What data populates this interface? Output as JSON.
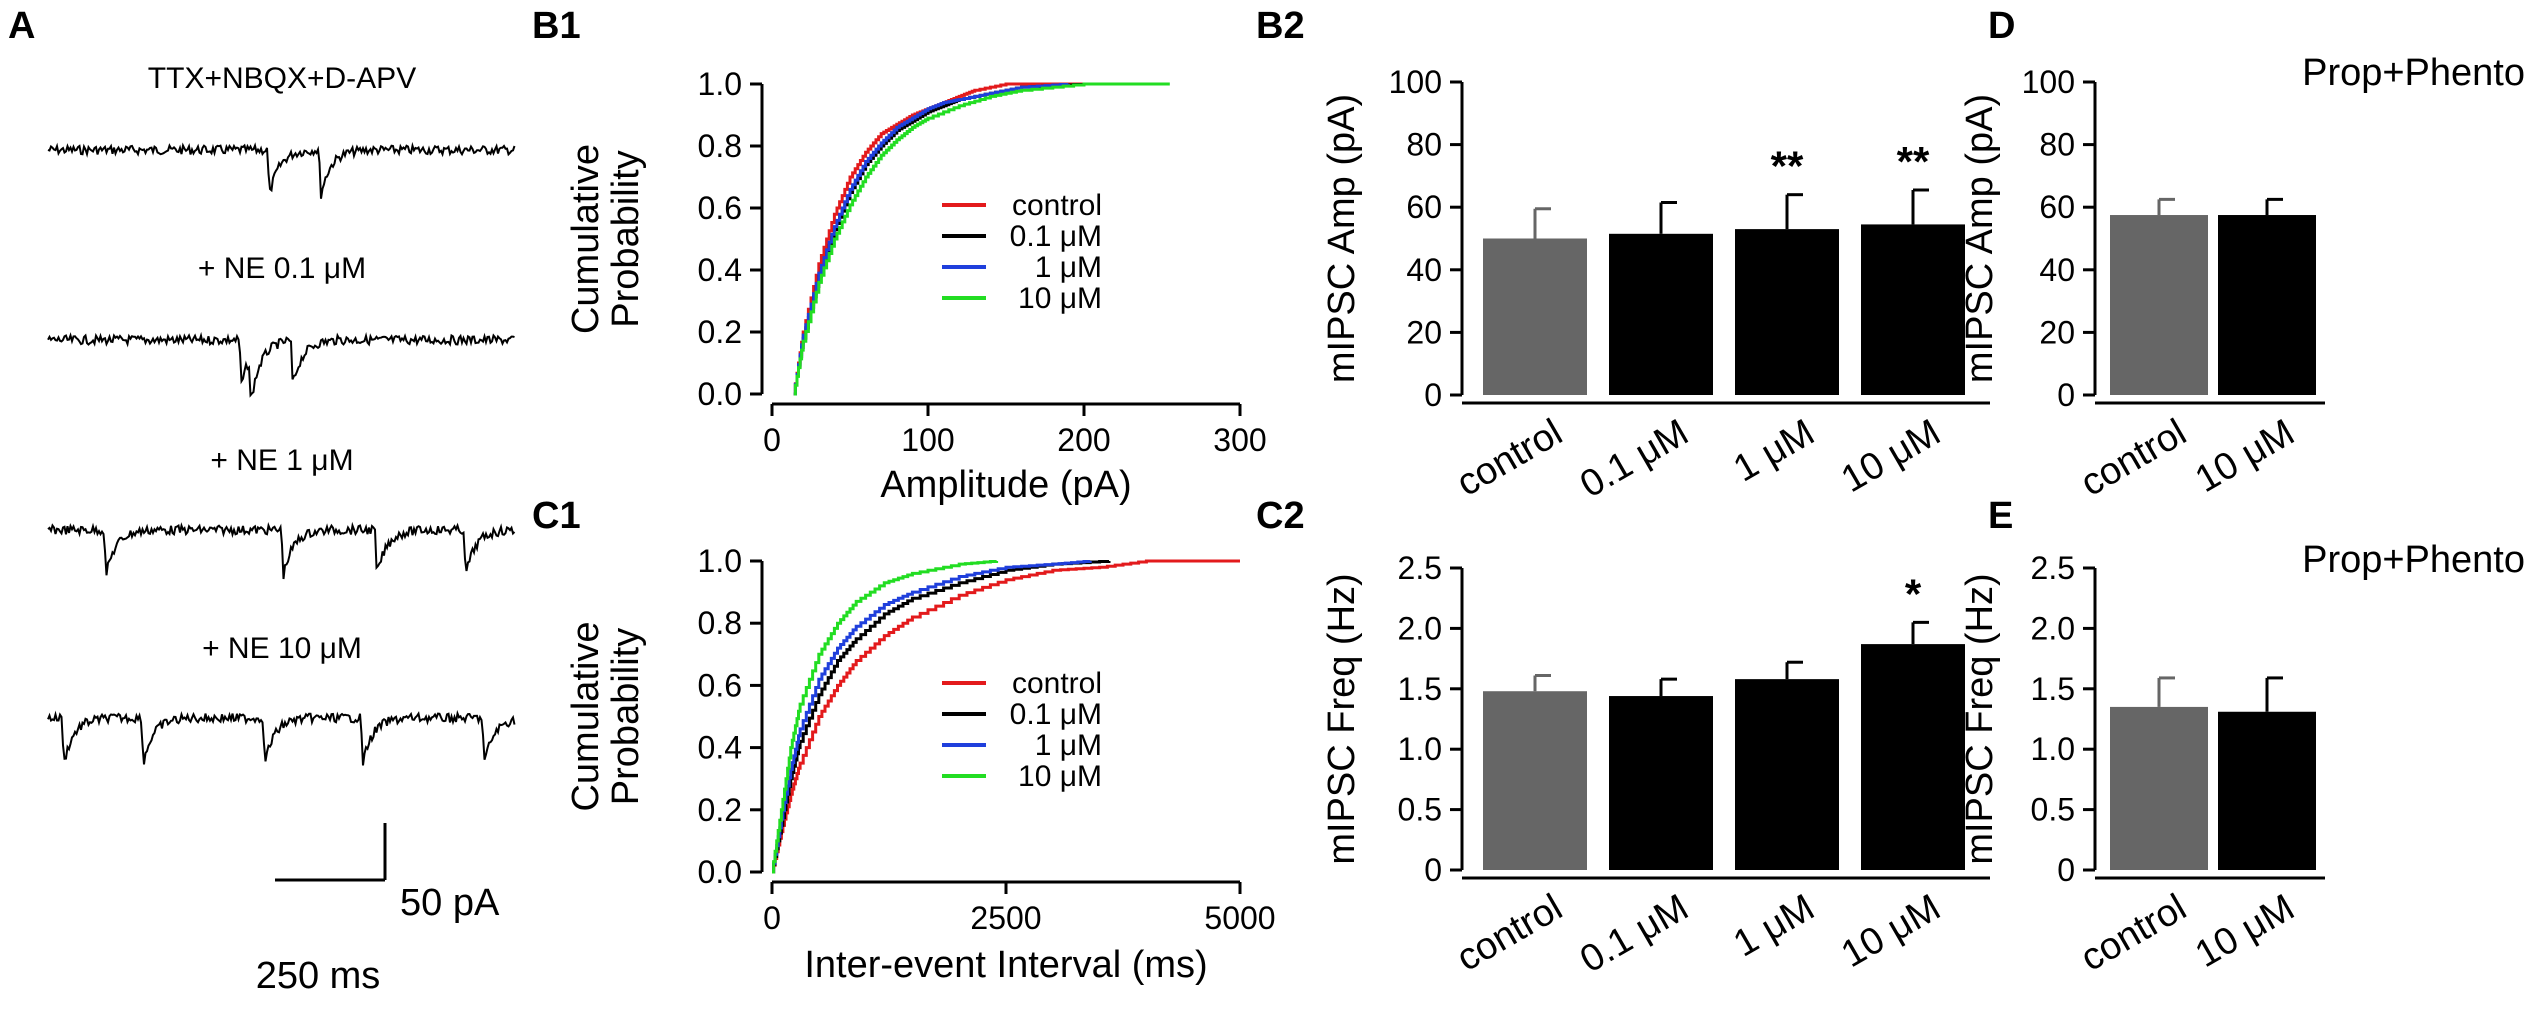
{
  "figure": {
    "colors": {
      "control": "#e31a1c",
      "c01": "#000000",
      "c1": "#1f3fdc",
      "c10": "#22dd22",
      "bar_control": "#666666",
      "bar_drug": "#000000"
    },
    "panelA": {
      "label": "A",
      "traces": [
        {
          "label": "TTX+NBQX+D-APV",
          "spike_positions": [
            0.47,
            0.58
          ]
        },
        {
          "label": "+ NE 0.1 μM",
          "spike_positions": [
            0.41,
            0.43,
            0.52
          ]
        },
        {
          "label": "+ NE 1 μM",
          "spike_positions": [
            0.12,
            0.5,
            0.7,
            0.89
          ]
        },
        {
          "label": "+ NE 10 μM",
          "spike_positions": [
            0.03,
            0.2,
            0.46,
            0.67,
            0.93
          ]
        }
      ],
      "scale_y": "50 pA",
      "scale_x": "250 ms"
    }
  },
  "chart_data": [
    {
      "id": "B1",
      "panel_label": "B1",
      "type": "line",
      "xlabel": "Amplitude (pA)",
      "ylabel_line1": "Cumulative",
      "ylabel_line2": "Probability",
      "xlim": [
        0,
        300
      ],
      "ylim": [
        0,
        1.0
      ],
      "xticks": [
        0,
        100,
        200,
        300
      ],
      "xtick_labels": [
        "0",
        "100",
        "200",
        "300"
      ],
      "yticks": [
        0,
        0.2,
        0.4,
        0.6,
        0.8,
        1.0
      ],
      "ytick_labels": [
        "0.0",
        "0.2",
        "0.4",
        "0.6",
        "0.8",
        "1.0"
      ],
      "legend_position": "center-right",
      "series": [
        {
          "name": "control",
          "key": "control",
          "x": [
            14,
            20,
            30,
            40,
            50,
            60,
            70,
            80,
            90,
            100,
            110,
            120,
            130,
            150,
            200
          ],
          "y": [
            0,
            0.2,
            0.42,
            0.58,
            0.7,
            0.78,
            0.84,
            0.87,
            0.9,
            0.92,
            0.94,
            0.96,
            0.98,
            1.0,
            1.0
          ]
        },
        {
          "name": "0.1 μM",
          "key": "c01",
          "x": [
            14,
            20,
            30,
            40,
            50,
            60,
            70,
            80,
            90,
            100,
            110,
            120,
            140,
            160,
            200
          ],
          "y": [
            0,
            0.18,
            0.38,
            0.53,
            0.65,
            0.74,
            0.8,
            0.85,
            0.88,
            0.91,
            0.93,
            0.95,
            0.97,
            0.99,
            1.0
          ]
        },
        {
          "name": "1 μM",
          "key": "c1",
          "x": [
            14,
            20,
            30,
            40,
            50,
            60,
            70,
            80,
            90,
            100,
            110,
            120,
            140,
            160,
            190
          ],
          "y": [
            0,
            0.19,
            0.39,
            0.54,
            0.66,
            0.75,
            0.81,
            0.86,
            0.89,
            0.92,
            0.94,
            0.95,
            0.97,
            0.99,
            1.0
          ]
        },
        {
          "name": "10 μM",
          "key": "c10",
          "x": [
            14,
            20,
            30,
            40,
            50,
            60,
            70,
            80,
            90,
            100,
            120,
            140,
            160,
            200,
            255
          ],
          "y": [
            0,
            0.17,
            0.36,
            0.5,
            0.61,
            0.7,
            0.77,
            0.82,
            0.86,
            0.89,
            0.93,
            0.96,
            0.98,
            1.0,
            1.0
          ]
        }
      ]
    },
    {
      "id": "C1",
      "panel_label": "C1",
      "type": "line",
      "xlabel": "Inter-event Interval (ms)",
      "ylabel_line1": "Cumulative",
      "ylabel_line2": "Probability",
      "xlim": [
        0,
        5000
      ],
      "ylim": [
        0,
        1.0
      ],
      "xticks": [
        0,
        2500,
        5000
      ],
      "xtick_labels": [
        "0",
        "2500",
        "5000"
      ],
      "yticks": [
        0,
        0.2,
        0.4,
        0.6,
        0.8,
        1.0
      ],
      "ytick_labels": [
        "0.0",
        "0.2",
        "0.4",
        "0.6",
        "0.8",
        "1.0"
      ],
      "legend_position": "center-right",
      "series": [
        {
          "name": "control",
          "key": "control",
          "x": [
            0,
            100,
            200,
            300,
            500,
            700,
            900,
            1200,
            1500,
            2000,
            2500,
            3000,
            3500,
            4000,
            5000
          ],
          "y": [
            0,
            0.13,
            0.25,
            0.35,
            0.5,
            0.6,
            0.68,
            0.76,
            0.82,
            0.89,
            0.94,
            0.97,
            0.98,
            1.0,
            1.0
          ]
        },
        {
          "name": "0.1 μM",
          "key": "c01",
          "x": [
            0,
            100,
            200,
            300,
            500,
            700,
            900,
            1200,
            1500,
            2000,
            2500,
            3000,
            3600
          ],
          "y": [
            0,
            0.15,
            0.3,
            0.42,
            0.57,
            0.68,
            0.75,
            0.83,
            0.88,
            0.93,
            0.97,
            0.99,
            1.0
          ]
        },
        {
          "name": "1 μM",
          "key": "c1",
          "x": [
            0,
            100,
            200,
            300,
            500,
            700,
            900,
            1200,
            1500,
            2000,
            2500,
            3000,
            3400
          ],
          "y": [
            0,
            0.17,
            0.33,
            0.46,
            0.62,
            0.72,
            0.79,
            0.86,
            0.9,
            0.95,
            0.98,
            0.99,
            1.0
          ]
        },
        {
          "name": "10 μM",
          "key": "c10",
          "x": [
            0,
            100,
            200,
            300,
            500,
            700,
            900,
            1200,
            1500,
            2000,
            2400
          ],
          "y": [
            0,
            0.2,
            0.4,
            0.54,
            0.7,
            0.8,
            0.87,
            0.93,
            0.96,
            0.99,
            1.0
          ]
        }
      ]
    },
    {
      "id": "B2",
      "panel_label": "B2",
      "type": "bar",
      "ylabel": "mIPSC Amp (pA)",
      "ylim": [
        0,
        100
      ],
      "yticks": [
        0,
        20,
        40,
        60,
        80,
        100
      ],
      "ytick_labels": [
        "0",
        "20",
        "40",
        "60",
        "80",
        "100"
      ],
      "categories": [
        "control",
        "0.1 μM",
        "1 μM",
        "10 μM"
      ],
      "values": [
        50,
        51.5,
        53,
        54.5
      ],
      "errors": [
        9.5,
        10,
        11,
        11
      ],
      "significance": [
        "",
        "",
        "**",
        "**"
      ],
      "bar_color_keys": [
        "bar_control",
        "bar_drug",
        "bar_drug",
        "bar_drug"
      ]
    },
    {
      "id": "C2",
      "panel_label": "C2",
      "type": "bar",
      "ylabel": "mIPSC Freq (Hz)",
      "ylim": [
        0,
        2.5
      ],
      "yticks": [
        0,
        0.5,
        1.0,
        1.5,
        2.0,
        2.5
      ],
      "ytick_labels": [
        "0",
        "0.5",
        "1.0",
        "1.5",
        "2.0",
        "2.5"
      ],
      "categories": [
        "control",
        "0.1 μM",
        "1 μM",
        "10 μM"
      ],
      "values": [
        1.48,
        1.44,
        1.58,
        1.87
      ],
      "errors": [
        0.13,
        0.14,
        0.14,
        0.18
      ],
      "significance": [
        "",
        "",
        "",
        "*"
      ],
      "bar_color_keys": [
        "bar_control",
        "bar_drug",
        "bar_drug",
        "bar_drug"
      ]
    },
    {
      "id": "D",
      "panel_label": "D",
      "type": "bar",
      "title": "Prop+Phento",
      "ylabel": "mIPSC Amp (pA)",
      "ylim": [
        0,
        100
      ],
      "yticks": [
        0,
        20,
        40,
        60,
        80,
        100
      ],
      "ytick_labels": [
        "0",
        "20",
        "40",
        "60",
        "80",
        "100"
      ],
      "categories": [
        "control",
        "10 μM"
      ],
      "values": [
        57.5,
        57.5
      ],
      "errors": [
        5,
        5
      ],
      "significance": [
        "",
        ""
      ],
      "bar_color_keys": [
        "bar_control",
        "bar_drug"
      ]
    },
    {
      "id": "E",
      "panel_label": "E",
      "type": "bar",
      "title": "Prop+Phento",
      "ylabel": "mIPSC Freq (Hz)",
      "ylim": [
        0,
        2.5
      ],
      "yticks": [
        0,
        0.5,
        1.0,
        1.5,
        2.0,
        2.5
      ],
      "ytick_labels": [
        "0",
        "0.5",
        "1.0",
        "1.5",
        "2.0",
        "2.5"
      ],
      "categories": [
        "control",
        "10 μM"
      ],
      "values": [
        1.35,
        1.31
      ],
      "errors": [
        0.24,
        0.28
      ],
      "significance": [
        "",
        ""
      ],
      "bar_color_keys": [
        "bar_control",
        "bar_drug"
      ]
    }
  ]
}
